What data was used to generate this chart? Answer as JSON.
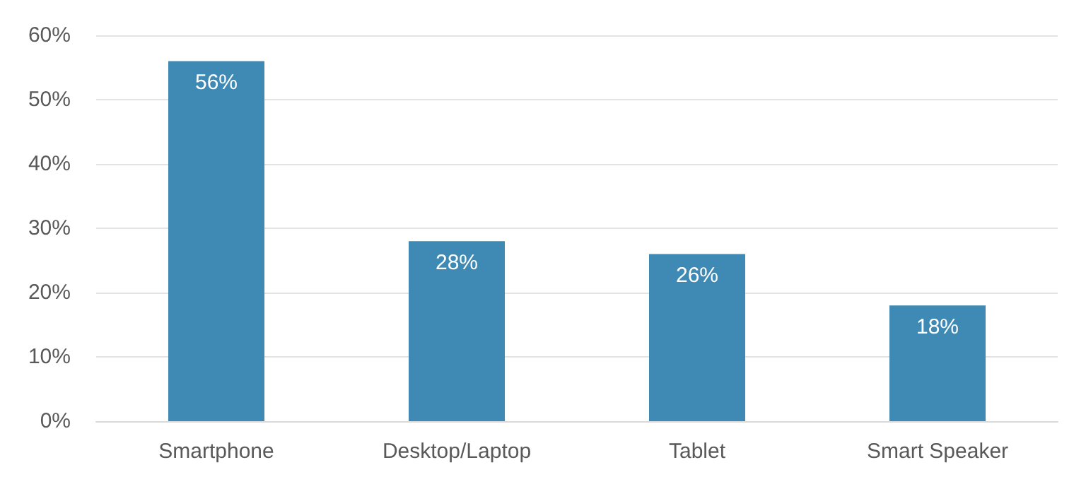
{
  "chart_data": {
    "type": "bar",
    "categories": [
      "Smartphone",
      "Desktop/Laptop",
      "Tablet",
      "Smart Speaker"
    ],
    "values": [
      56,
      28,
      26,
      18
    ],
    "color": "#3f8ab4",
    "value_labels": [
      "56%",
      "28%",
      "26%",
      "18%"
    ],
    "ylim": [
      0,
      60
    ],
    "yticks": [
      {
        "value": 0,
        "label": "0%"
      },
      {
        "value": 10,
        "label": "10%"
      },
      {
        "value": 20,
        "label": "20%"
      },
      {
        "value": 30,
        "label": "30%"
      },
      {
        "value": 40,
        "label": "40%"
      },
      {
        "value": 50,
        "label": "50%"
      },
      {
        "value": 60,
        "label": "60%"
      }
    ],
    "grid": "y"
  }
}
